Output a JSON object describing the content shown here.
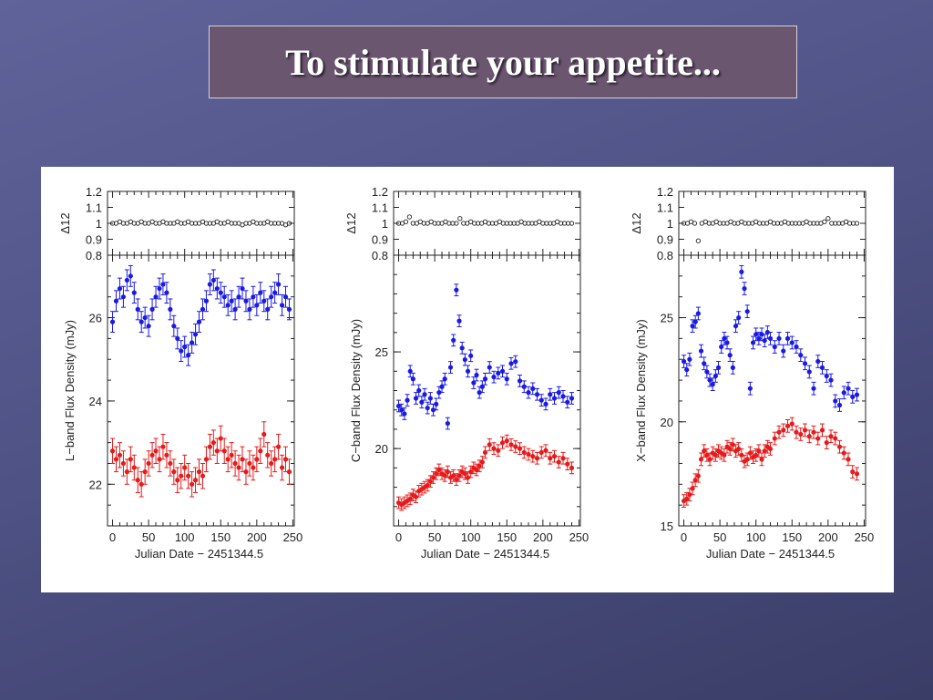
{
  "slide": {
    "title": "To stimulate your appetite..."
  },
  "colors": {
    "series_high": "#1a1ae6",
    "series_low": "#e61a1a",
    "ratio_points": "#222222"
  },
  "chart_data": [
    {
      "type": "scatter",
      "panel": "L-band",
      "xlabel": "Julian Date − 2451344.5",
      "ylabel": "L−band Flux Density (mJy)",
      "ratio_label": "Δ12",
      "xlim": [
        -7,
        252
      ],
      "ylim": [
        21,
        27.5
      ],
      "ratio_ylim": [
        0.8,
        1.2
      ],
      "xticks": [
        0,
        50,
        100,
        150,
        200,
        250
      ],
      "yticks": [
        22,
        24,
        26
      ],
      "ratio_yticks": [
        0.8,
        0.9,
        1,
        1.1,
        1.2
      ],
      "series": [
        {
          "x": [
            0,
            5,
            10,
            15,
            20,
            25,
            30,
            35,
            40,
            45,
            50,
            55,
            60,
            65,
            70,
            75,
            80,
            85,
            90,
            95,
            100,
            105,
            110,
            115,
            120,
            125,
            130,
            135,
            140,
            145,
            150,
            155,
            160,
            165,
            170,
            175,
            180,
            185,
            190,
            195,
            200,
            205,
            210,
            215,
            220,
            225,
            230,
            235,
            240,
            245
          ],
          "y": [
            25.9,
            26.4,
            26.7,
            26.5,
            26.9,
            27.0,
            26.6,
            26.2,
            25.9,
            26.0,
            25.8,
            26.2,
            26.5,
            26.7,
            26.8,
            26.6,
            26.2,
            25.8,
            25.5,
            25.2,
            25.3,
            25.1,
            25.4,
            25.6,
            25.9,
            26.2,
            26.4,
            26.8,
            26.9,
            26.7,
            26.6,
            26.5,
            26.3,
            26.4,
            26.2,
            26.5,
            26.7,
            26.4,
            26.2,
            26.5,
            26.3,
            26.6,
            26.4,
            26.2,
            26.5,
            26.6,
            26.8,
            26.3,
            26.5,
            26.2
          ],
          "err": 0.25
        },
        {
          "x": [
            0,
            5,
            10,
            15,
            20,
            25,
            30,
            35,
            40,
            45,
            50,
            55,
            60,
            65,
            70,
            75,
            80,
            85,
            90,
            95,
            100,
            105,
            110,
            115,
            120,
            125,
            130,
            135,
            140,
            145,
            150,
            155,
            160,
            165,
            170,
            175,
            180,
            185,
            190,
            195,
            200,
            205,
            210,
            215,
            220,
            225,
            230,
            235,
            240,
            245
          ],
          "y": [
            22.8,
            22.6,
            22.7,
            22.5,
            22.3,
            22.6,
            22.4,
            22.1,
            22.0,
            22.3,
            22.5,
            22.7,
            22.8,
            22.6,
            22.9,
            22.7,
            22.5,
            22.3,
            22.1,
            22.2,
            22.4,
            22.2,
            22.0,
            22.1,
            22.3,
            22.2,
            22.6,
            22.9,
            23.0,
            22.8,
            23.1,
            22.8,
            22.6,
            22.7,
            22.5,
            22.4,
            22.6,
            22.3,
            22.5,
            22.4,
            22.6,
            22.8,
            23.2,
            22.7,
            22.5,
            22.6,
            22.9,
            22.4,
            22.6,
            22.3
          ],
          "err": 0.3
        }
      ],
      "ratio": {
        "x": [
          0,
          5,
          10,
          15,
          20,
          25,
          30,
          35,
          40,
          45,
          50,
          55,
          60,
          65,
          70,
          75,
          80,
          85,
          90,
          95,
          100,
          105,
          110,
          115,
          120,
          125,
          130,
          135,
          140,
          145,
          150,
          155,
          160,
          165,
          170,
          175,
          180,
          185,
          190,
          195,
          200,
          205,
          210,
          215,
          220,
          225,
          230,
          235,
          240,
          245
        ],
        "y": [
          1.0,
          1.0,
          1.01,
          1.0,
          1.0,
          1.01,
          1.0,
          1.0,
          1.01,
          1.0,
          1.0,
          1.01,
          1.0,
          1.0,
          1.01,
          1.0,
          1.0,
          1.0,
          1.01,
          1.0,
          1.0,
          1.01,
          1.0,
          1.0,
          1.0,
          1.01,
          1.0,
          1.0,
          1.0,
          1.01,
          1.0,
          1.0,
          1.01,
          1.0,
          1.0,
          1.0,
          0.99,
          1.0,
          1.0,
          1.01,
          1.0,
          1.0,
          1.0,
          1.01,
          1.0,
          1.0,
          1.0,
          1.0,
          0.99,
          1.0
        ]
      }
    },
    {
      "type": "scatter",
      "panel": "C-band",
      "xlabel": "Julian Date − 2451344.5",
      "ylabel": "C−band Flux Density (mJy)",
      "ratio_label": "Δ12",
      "xlim": [
        -7,
        252
      ],
      "ylim": [
        16,
        30
      ],
      "ratio_ylim": [
        0.8,
        1.2
      ],
      "xticks": [
        0,
        50,
        100,
        150,
        200,
        250
      ],
      "yticks": [
        20,
        25
      ],
      "ratio_yticks": [
        0.8,
        0.9,
        1,
        1.1,
        1.2
      ],
      "series": [
        {
          "x": [
            0,
            4,
            8,
            12,
            16,
            20,
            24,
            28,
            32,
            36,
            40,
            44,
            48,
            52,
            56,
            60,
            64,
            68,
            72,
            76,
            80,
            84,
            88,
            92,
            96,
            100,
            104,
            108,
            112,
            116,
            120,
            126,
            132,
            138,
            144,
            150,
            156,
            162,
            168,
            174,
            180,
            186,
            192,
            198,
            204,
            210,
            216,
            222,
            228,
            234,
            240
          ],
          "y": [
            22.2,
            22.0,
            21.8,
            22.5,
            24.0,
            23.6,
            22.6,
            23.0,
            22.4,
            22.8,
            22.1,
            22.6,
            22.0,
            22.3,
            22.9,
            23.2,
            23.6,
            21.3,
            24.2,
            25.6,
            28.2,
            26.6,
            25.2,
            24.6,
            24.0,
            24.8,
            23.4,
            23.8,
            22.9,
            23.2,
            23.6,
            24.2,
            23.7,
            23.9,
            24.0,
            23.6,
            24.4,
            24.5,
            23.5,
            23.2,
            22.9,
            23.1,
            22.8,
            22.5,
            22.3,
            22.8,
            22.6,
            22.9,
            22.7,
            22.4,
            22.6
          ],
          "err": 0.3
        },
        {
          "x": [
            0,
            4,
            8,
            12,
            16,
            20,
            24,
            28,
            32,
            36,
            40,
            44,
            48,
            52,
            56,
            60,
            64,
            68,
            72,
            76,
            80,
            84,
            88,
            92,
            96,
            100,
            104,
            108,
            112,
            116,
            120,
            126,
            132,
            138,
            144,
            150,
            156,
            162,
            168,
            174,
            180,
            186,
            192,
            198,
            204,
            210,
            216,
            222,
            228,
            234,
            240
          ],
          "y": [
            17.2,
            17.1,
            17.2,
            17.3,
            17.4,
            17.6,
            17.5,
            17.8,
            17.9,
            18.0,
            18.1,
            18.3,
            18.5,
            18.7,
            18.9,
            18.7,
            18.6,
            18.8,
            18.5,
            18.6,
            18.4,
            18.6,
            18.8,
            18.7,
            18.5,
            18.8,
            19.0,
            18.9,
            19.1,
            19.3,
            19.8,
            20.2,
            20.0,
            19.9,
            20.3,
            20.4,
            20.2,
            20.1,
            20.0,
            19.8,
            19.7,
            19.6,
            19.5,
            19.8,
            19.9,
            19.5,
            19.6,
            19.3,
            19.5,
            19.2,
            19.0
          ],
          "err": 0.3
        }
      ],
      "ratio": {
        "x": [
          0,
          5,
          10,
          15,
          20,
          25,
          30,
          35,
          40,
          45,
          50,
          55,
          60,
          65,
          70,
          75,
          80,
          85,
          90,
          95,
          100,
          105,
          110,
          115,
          120,
          125,
          130,
          135,
          140,
          145,
          150,
          155,
          160,
          165,
          170,
          175,
          180,
          185,
          190,
          195,
          200,
          205,
          210,
          215,
          220,
          225,
          230,
          235,
          240
        ],
        "y": [
          1.0,
          1.0,
          1.01,
          1.04,
          1.0,
          1.0,
          1.01,
          1.0,
          1.0,
          1.01,
          1.0,
          1.0,
          1.0,
          1.01,
          1.0,
          1.0,
          1.0,
          1.03,
          1.0,
          1.0,
          1.01,
          1.0,
          1.0,
          1.0,
          1.01,
          1.0,
          1.0,
          1.0,
          1.01,
          1.0,
          1.0,
          1.0,
          1.0,
          1.0,
          1.01,
          1.0,
          1.0,
          1.0,
          1.0,
          1.01,
          1.0,
          1.0,
          1.0,
          1.0,
          1.01,
          1.0,
          1.0,
          1.0,
          1.0
        ]
      }
    },
    {
      "type": "scatter",
      "panel": "X-band",
      "xlabel": "Julian Date − 2451344.5",
      "ylabel": "X−band Flux Density (mJy)",
      "ratio_label": "Δ12",
      "xlim": [
        -7,
        252
      ],
      "ylim": [
        15,
        28
      ],
      "ratio_ylim": [
        0.8,
        1.2
      ],
      "xticks": [
        0,
        50,
        100,
        150,
        200,
        250
      ],
      "yticks": [
        15,
        20,
        25
      ],
      "ratio_yticks": [
        0.8,
        0.9,
        1,
        1.1,
        1.2
      ],
      "series": [
        {
          "x": [
            0,
            4,
            8,
            12,
            16,
            20,
            24,
            28,
            32,
            36,
            40,
            44,
            48,
            52,
            56,
            60,
            64,
            68,
            72,
            76,
            80,
            84,
            88,
            92,
            96,
            100,
            104,
            108,
            112,
            116,
            120,
            126,
            132,
            138,
            144,
            150,
            156,
            162,
            168,
            174,
            180,
            186,
            192,
            198,
            204,
            210,
            216,
            222,
            228,
            234,
            240
          ],
          "y": [
            22.9,
            22.5,
            23.0,
            24.6,
            24.8,
            25.2,
            23.4,
            22.8,
            22.4,
            22.0,
            21.8,
            22.2,
            22.6,
            23.6,
            24.0,
            23.8,
            23.2,
            22.6,
            24.6,
            25.0,
            27.2,
            26.4,
            25.3,
            21.6,
            23.8,
            24.2,
            24.0,
            24.2,
            23.9,
            24.3,
            24.0,
            23.6,
            24.0,
            23.4,
            24.0,
            23.8,
            23.6,
            23.2,
            22.8,
            22.4,
            21.6,
            22.9,
            22.6,
            22.2,
            22.0,
            21.0,
            20.8,
            21.4,
            21.6,
            21.2,
            21.3
          ],
          "err": 0.3
        },
        {
          "x": [
            0,
            4,
            8,
            12,
            16,
            20,
            24,
            28,
            32,
            36,
            40,
            44,
            48,
            52,
            56,
            60,
            64,
            68,
            72,
            76,
            80,
            84,
            88,
            92,
            96,
            100,
            104,
            108,
            112,
            116,
            120,
            126,
            132,
            138,
            144,
            150,
            156,
            162,
            168,
            174,
            180,
            186,
            192,
            198,
            204,
            210,
            216,
            222,
            228,
            234,
            240
          ],
          "y": [
            16.2,
            16.3,
            16.5,
            16.8,
            17.2,
            17.4,
            18.2,
            18.6,
            18.4,
            18.2,
            18.5,
            18.4,
            18.6,
            18.5,
            18.4,
            18.8,
            18.7,
            18.9,
            18.6,
            18.7,
            18.4,
            18.1,
            18.2,
            18.5,
            18.3,
            18.4,
            18.6,
            18.2,
            18.6,
            18.8,
            18.7,
            19.2,
            19.5,
            19.6,
            19.8,
            19.9,
            19.5,
            19.4,
            19.6,
            19.3,
            19.5,
            19.2,
            19.6,
            19.0,
            19.3,
            19.2,
            18.8,
            18.5,
            18.2,
            17.6,
            17.5
          ],
          "err": 0.3
        }
      ],
      "ratio": {
        "x": [
          0,
          5,
          10,
          15,
          20,
          25,
          30,
          35,
          40,
          45,
          50,
          55,
          60,
          65,
          70,
          75,
          80,
          85,
          90,
          95,
          100,
          105,
          110,
          115,
          120,
          125,
          130,
          135,
          140,
          145,
          150,
          155,
          160,
          165,
          170,
          175,
          180,
          185,
          190,
          195,
          200,
          205,
          210,
          215,
          220,
          225,
          230,
          235,
          240
        ],
        "y": [
          1.0,
          1.0,
          1.01,
          1.0,
          0.89,
          1.0,
          1.01,
          1.0,
          1.0,
          1.01,
          1.0,
          1.0,
          1.0,
          1.01,
          1.0,
          1.0,
          1.01,
          1.0,
          1.0,
          1.0,
          1.01,
          1.0,
          1.0,
          1.0,
          1.01,
          1.0,
          1.0,
          1.0,
          1.01,
          1.0,
          1.0,
          1.0,
          1.0,
          1.0,
          1.01,
          1.0,
          1.0,
          1.0,
          1.0,
          1.01,
          1.03,
          1.0,
          1.0,
          1.0,
          1.0,
          1.01,
          1.0,
          1.0,
          1.0
        ]
      }
    }
  ]
}
